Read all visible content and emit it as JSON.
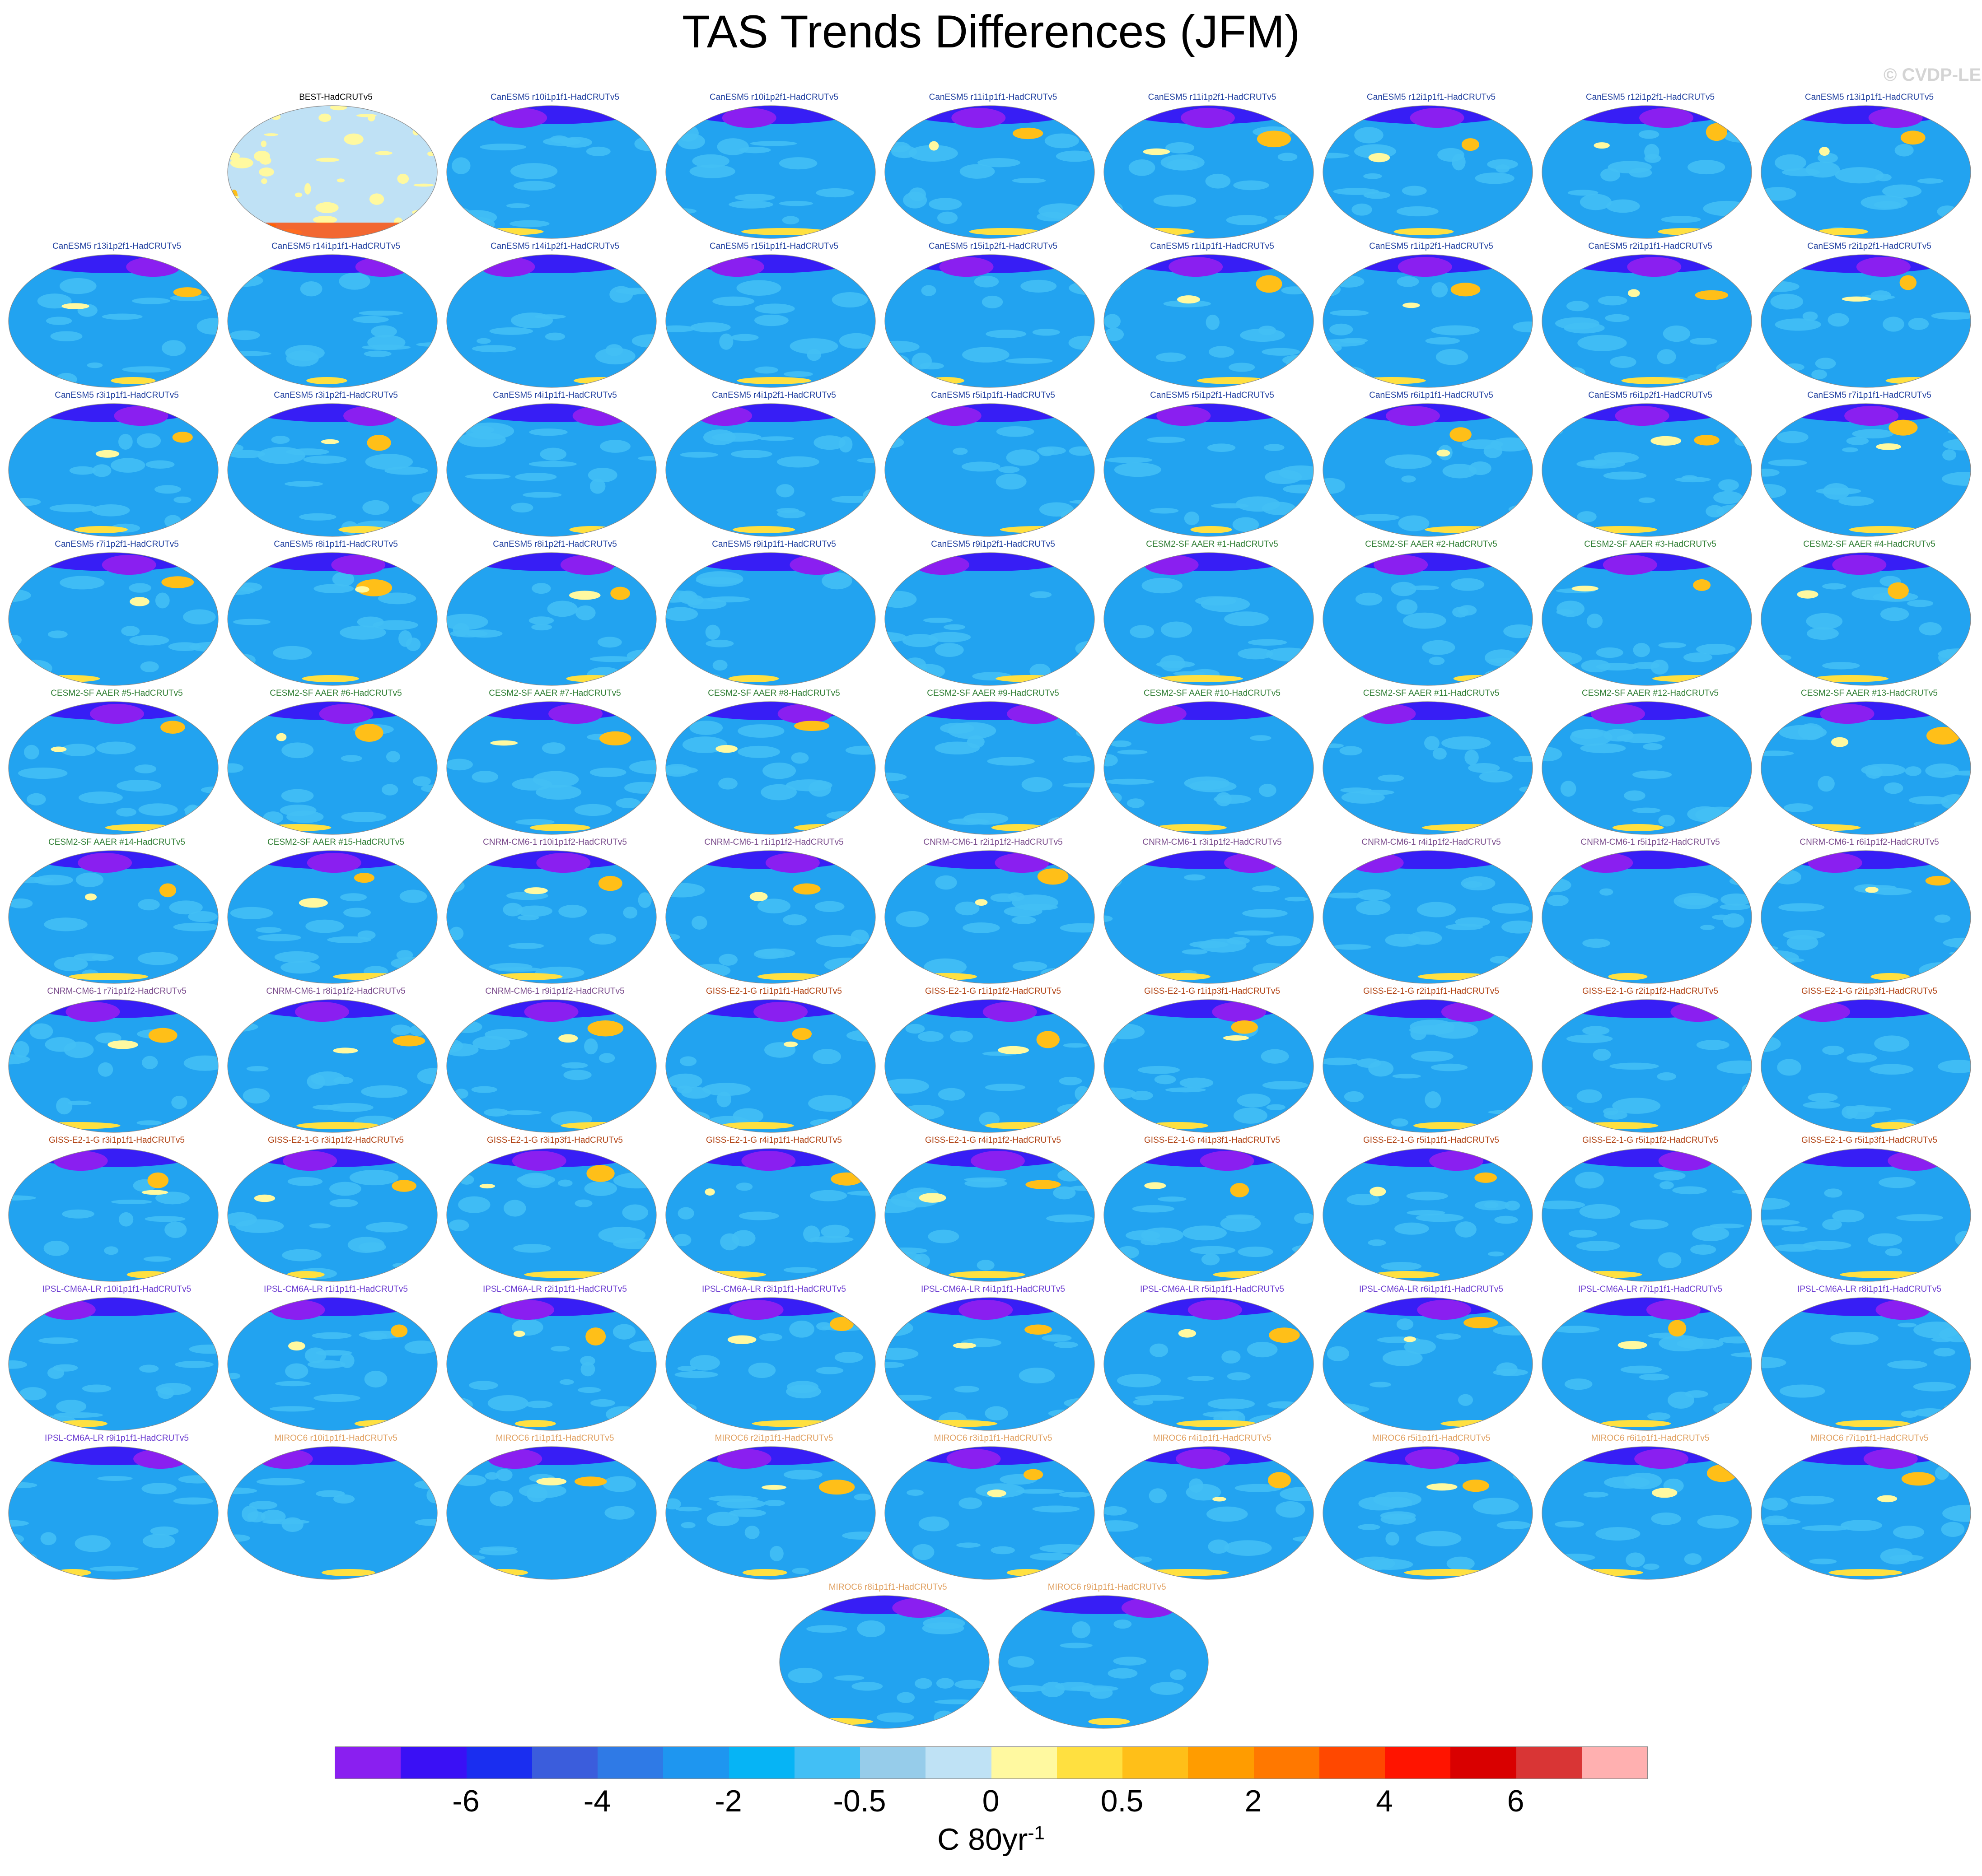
{
  "title": "TAS Trends Differences (JFM)",
  "watermark": "© CVDP-LE",
  "colors": {
    "CanESM5": "#1f3f9f",
    "CESM2-SF AAER": "#2e7d32",
    "CNRM-CM6-1": "#7a4b8c",
    "GISS-E2-1-G": "#b04010",
    "IPSL-CM6A-LR": "#6a3ad0",
    "MIROC6": "#e0a060",
    "obs": "#000000",
    "ocean": "#22a3f0",
    "obs_ocean": "#bfe1f5"
  },
  "panels": [
    {
      "label": "BEST-HadCRUTv5",
      "group": "obs"
    },
    {
      "label": "CanESM5 r10i1p1f1-HadCRUTv5",
      "group": "CanESM5"
    },
    {
      "label": "CanESM5 r10i1p2f1-HadCRUTv5",
      "group": "CanESM5"
    },
    {
      "label": "CanESM5 r11i1p1f1-HadCRUTv5",
      "group": "CanESM5"
    },
    {
      "label": "CanESM5 r11i1p2f1-HadCRUTv5",
      "group": "CanESM5"
    },
    {
      "label": "CanESM5 r12i1p1f1-HadCRUTv5",
      "group": "CanESM5"
    },
    {
      "label": "CanESM5 r12i1p2f1-HadCRUTv5",
      "group": "CanESM5"
    },
    {
      "label": "CanESM5 r13i1p1f1-HadCRUTv5",
      "group": "CanESM5"
    },
    {
      "label": "CanESM5 r13i1p2f1-HadCRUTv5",
      "group": "CanESM5"
    },
    {
      "label": "CanESM5 r14i1p1f1-HadCRUTv5",
      "group": "CanESM5"
    },
    {
      "label": "CanESM5 r14i1p2f1-HadCRUTv5",
      "group": "CanESM5"
    },
    {
      "label": "CanESM5 r15i1p1f1-HadCRUTv5",
      "group": "CanESM5"
    },
    {
      "label": "CanESM5 r15i1p2f1-HadCRUTv5",
      "group": "CanESM5"
    },
    {
      "label": "CanESM5 r1i1p1f1-HadCRUTv5",
      "group": "CanESM5"
    },
    {
      "label": "CanESM5 r1i1p2f1-HadCRUTv5",
      "group": "CanESM5"
    },
    {
      "label": "CanESM5 r2i1p1f1-HadCRUTv5",
      "group": "CanESM5"
    },
    {
      "label": "CanESM5 r2i1p2f1-HadCRUTv5",
      "group": "CanESM5"
    },
    {
      "label": "CanESM5 r3i1p1f1-HadCRUTv5",
      "group": "CanESM5"
    },
    {
      "label": "CanESM5 r3i1p2f1-HadCRUTv5",
      "group": "CanESM5"
    },
    {
      "label": "CanESM5 r4i1p1f1-HadCRUTv5",
      "group": "CanESM5"
    },
    {
      "label": "CanESM5 r4i1p2f1-HadCRUTv5",
      "group": "CanESM5"
    },
    {
      "label": "CanESM5 r5i1p1f1-HadCRUTv5",
      "group": "CanESM5"
    },
    {
      "label": "CanESM5 r5i1p2f1-HadCRUTv5",
      "group": "CanESM5"
    },
    {
      "label": "CanESM5 r6i1p1f1-HadCRUTv5",
      "group": "CanESM5"
    },
    {
      "label": "CanESM5 r6i1p2f1-HadCRUTv5",
      "group": "CanESM5"
    },
    {
      "label": "CanESM5 r7i1p1f1-HadCRUTv5",
      "group": "CanESM5"
    },
    {
      "label": "CanESM5 r7i1p2f1-HadCRUTv5",
      "group": "CanESM5"
    },
    {
      "label": "CanESM5 r8i1p1f1-HadCRUTv5",
      "group": "CanESM5"
    },
    {
      "label": "CanESM5 r8i1p2f1-HadCRUTv5",
      "group": "CanESM5"
    },
    {
      "label": "CanESM5 r9i1p1f1-HadCRUTv5",
      "group": "CanESM5"
    },
    {
      "label": "CanESM5 r9i1p2f1-HadCRUTv5",
      "group": "CanESM5"
    },
    {
      "label": "CESM2-SF AAER #1-HadCRUTv5",
      "group": "CESM2-SF AAER"
    },
    {
      "label": "CESM2-SF AAER #2-HadCRUTv5",
      "group": "CESM2-SF AAER"
    },
    {
      "label": "CESM2-SF AAER #3-HadCRUTv5",
      "group": "CESM2-SF AAER"
    },
    {
      "label": "CESM2-SF AAER #4-HadCRUTv5",
      "group": "CESM2-SF AAER"
    },
    {
      "label": "CESM2-SF AAER #5-HadCRUTv5",
      "group": "CESM2-SF AAER"
    },
    {
      "label": "CESM2-SF AAER #6-HadCRUTv5",
      "group": "CESM2-SF AAER"
    },
    {
      "label": "CESM2-SF AAER #7-HadCRUTv5",
      "group": "CESM2-SF AAER"
    },
    {
      "label": "CESM2-SF AAER #8-HadCRUTv5",
      "group": "CESM2-SF AAER"
    },
    {
      "label": "CESM2-SF AAER #9-HadCRUTv5",
      "group": "CESM2-SF AAER"
    },
    {
      "label": "CESM2-SF AAER #10-HadCRUTv5",
      "group": "CESM2-SF AAER"
    },
    {
      "label": "CESM2-SF AAER #11-HadCRUTv5",
      "group": "CESM2-SF AAER"
    },
    {
      "label": "CESM2-SF AAER #12-HadCRUTv5",
      "group": "CESM2-SF AAER"
    },
    {
      "label": "CESM2-SF AAER #13-HadCRUTv5",
      "group": "CESM2-SF AAER"
    },
    {
      "label": "CESM2-SF AAER #14-HadCRUTv5",
      "group": "CESM2-SF AAER"
    },
    {
      "label": "CESM2-SF AAER #15-HadCRUTv5",
      "group": "CESM2-SF AAER"
    },
    {
      "label": "CNRM-CM6-1 r10i1p1f2-HadCRUTv5",
      "group": "CNRM-CM6-1"
    },
    {
      "label": "CNRM-CM6-1 r1i1p1f2-HadCRUTv5",
      "group": "CNRM-CM6-1"
    },
    {
      "label": "CNRM-CM6-1 r2i1p1f2-HadCRUTv5",
      "group": "CNRM-CM6-1"
    },
    {
      "label": "CNRM-CM6-1 r3i1p1f2-HadCRUTv5",
      "group": "CNRM-CM6-1"
    },
    {
      "label": "CNRM-CM6-1 r4i1p1f2-HadCRUTv5",
      "group": "CNRM-CM6-1"
    },
    {
      "label": "CNRM-CM6-1 r5i1p1f2-HadCRUTv5",
      "group": "CNRM-CM6-1"
    },
    {
      "label": "CNRM-CM6-1 r6i1p1f2-HadCRUTv5",
      "group": "CNRM-CM6-1"
    },
    {
      "label": "CNRM-CM6-1 r7i1p1f2-HadCRUTv5",
      "group": "CNRM-CM6-1"
    },
    {
      "label": "CNRM-CM6-1 r8i1p1f2-HadCRUTv5",
      "group": "CNRM-CM6-1"
    },
    {
      "label": "CNRM-CM6-1 r9i1p1f2-HadCRUTv5",
      "group": "CNRM-CM6-1"
    },
    {
      "label": "GISS-E2-1-G r1i1p1f1-HadCRUTv5",
      "group": "GISS-E2-1-G"
    },
    {
      "label": "GISS-E2-1-G r1i1p1f2-HadCRUTv5",
      "group": "GISS-E2-1-G"
    },
    {
      "label": "GISS-E2-1-G r1i1p3f1-HadCRUTv5",
      "group": "GISS-E2-1-G"
    },
    {
      "label": "GISS-E2-1-G r2i1p1f1-HadCRUTv5",
      "group": "GISS-E2-1-G"
    },
    {
      "label": "GISS-E2-1-G r2i1p1f2-HadCRUTv5",
      "group": "GISS-E2-1-G"
    },
    {
      "label": "GISS-E2-1-G r2i1p3f1-HadCRUTv5",
      "group": "GISS-E2-1-G"
    },
    {
      "label": "GISS-E2-1-G r3i1p1f1-HadCRUTv5",
      "group": "GISS-E2-1-G"
    },
    {
      "label": "GISS-E2-1-G r3i1p1f2-HadCRUTv5",
      "group": "GISS-E2-1-G"
    },
    {
      "label": "GISS-E2-1-G r3i1p3f1-HadCRUTv5",
      "group": "GISS-E2-1-G"
    },
    {
      "label": "GISS-E2-1-G r4i1p1f1-HadCRUTv5",
      "group": "GISS-E2-1-G"
    },
    {
      "label": "GISS-E2-1-G r4i1p1f2-HadCRUTv5",
      "group": "GISS-E2-1-G"
    },
    {
      "label": "GISS-E2-1-G r4i1p3f1-HadCRUTv5",
      "group": "GISS-E2-1-G"
    },
    {
      "label": "GISS-E2-1-G r5i1p1f1-HadCRUTv5",
      "group": "GISS-E2-1-G"
    },
    {
      "label": "GISS-E2-1-G r5i1p1f2-HadCRUTv5",
      "group": "GISS-E2-1-G"
    },
    {
      "label": "GISS-E2-1-G r5i1p3f1-HadCRUTv5",
      "group": "GISS-E2-1-G"
    },
    {
      "label": "IPSL-CM6A-LR r10i1p1f1-HadCRUTv5",
      "group": "IPSL-CM6A-LR"
    },
    {
      "label": "IPSL-CM6A-LR r1i1p1f1-HadCRUTv5",
      "group": "IPSL-CM6A-LR"
    },
    {
      "label": "IPSL-CM6A-LR r2i1p1f1-HadCRUTv5",
      "group": "IPSL-CM6A-LR"
    },
    {
      "label": "IPSL-CM6A-LR r3i1p1f1-HadCRUTv5",
      "group": "IPSL-CM6A-LR"
    },
    {
      "label": "IPSL-CM6A-LR r4i1p1f1-HadCRUTv5",
      "group": "IPSL-CM6A-LR"
    },
    {
      "label": "IPSL-CM6A-LR r5i1p1f1-HadCRUTv5",
      "group": "IPSL-CM6A-LR"
    },
    {
      "label": "IPSL-CM6A-LR r6i1p1f1-HadCRUTv5",
      "group": "IPSL-CM6A-LR"
    },
    {
      "label": "IPSL-CM6A-LR r7i1p1f1-HadCRUTv5",
      "group": "IPSL-CM6A-LR"
    },
    {
      "label": "IPSL-CM6A-LR r8i1p1f1-HadCRUTv5",
      "group": "IPSL-CM6A-LR"
    },
    {
      "label": "IPSL-CM6A-LR r9i1p1f1-HadCRUTv5",
      "group": "IPSL-CM6A-LR"
    },
    {
      "label": "MIROC6 r10i1p1f1-HadCRUTv5",
      "group": "MIROC6"
    },
    {
      "label": "MIROC6 r1i1p1f1-HadCRUTv5",
      "group": "MIROC6"
    },
    {
      "label": "MIROC6 r2i1p1f1-HadCRUTv5",
      "group": "MIROC6"
    },
    {
      "label": "MIROC6 r3i1p1f1-HadCRUTv5",
      "group": "MIROC6"
    },
    {
      "label": "MIROC6 r4i1p1f1-HadCRUTv5",
      "group": "MIROC6"
    },
    {
      "label": "MIROC6 r5i1p1f1-HadCRUTv5",
      "group": "MIROC6"
    },
    {
      "label": "MIROC6 r6i1p1f1-HadCRUTv5",
      "group": "MIROC6"
    },
    {
      "label": "MIROC6 r7i1p1f1-HadCRUTv5",
      "group": "MIROC6"
    },
    {
      "label": "MIROC6 r8i1p1f1-HadCRUTv5",
      "group": "MIROC6"
    },
    {
      "label": "MIROC6 r9i1p1f1-HadCRUTv5",
      "group": "MIROC6"
    }
  ],
  "colorbar": {
    "colors": [
      "#8a1ff0",
      "#3a10f5",
      "#1a2ef0",
      "#3b5ddc",
      "#2f7ae6",
      "#1e96f0",
      "#06b4f5",
      "#42bff5",
      "#96ccea",
      "#bfe2f5",
      "#fff9a0",
      "#ffe040",
      "#ffbf18",
      "#ff9c00",
      "#ff7800",
      "#ff4800",
      "#ff1400",
      "#d90000",
      "#d93535",
      "#ffb0b0"
    ],
    "labels": [
      {
        "text": "-6",
        "boundary": 2
      },
      {
        "text": "-4",
        "boundary": 4
      },
      {
        "text": "-2",
        "boundary": 6
      },
      {
        "text": "-0.5",
        "boundary": 8
      },
      {
        "text": "0",
        "boundary": 10
      },
      {
        "text": "0.5",
        "boundary": 12
      },
      {
        "text": "2",
        "boundary": 14
      },
      {
        "text": "4",
        "boundary": 16
      },
      {
        "text": "6",
        "boundary": 18
      }
    ],
    "units": "C 80yr",
    "units_exponent": "-1"
  }
}
